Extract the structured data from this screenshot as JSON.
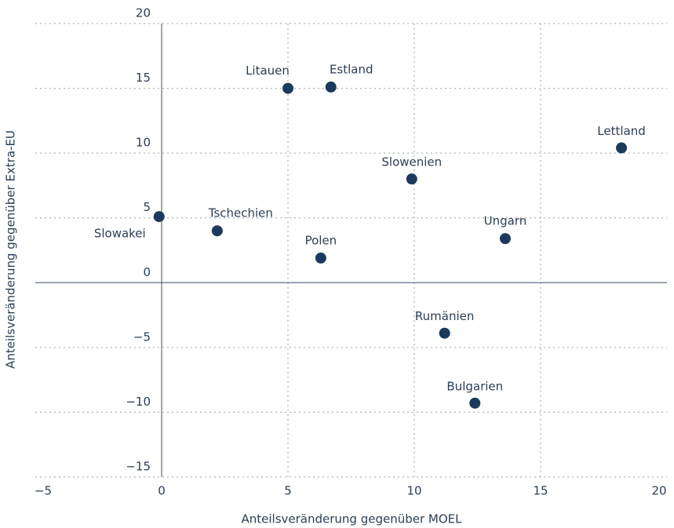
{
  "chart_data": {
    "type": "scatter",
    "x_label": "Anteilsveränderung gegenüber MOEL",
    "y_label": "Anteilsveränderung gegenüber Extra-EU",
    "color": "#1b3a5c",
    "xlim": [
      -5,
      20
    ],
    "xticks": [
      {
        "value": -5,
        "label": "−5"
      },
      0,
      5,
      10,
      15,
      20
    ],
    "ylim": [
      -15,
      20
    ],
    "yticks": [
      {
        "value": -15,
        "label": "−15"
      },
      {
        "value": -10,
        "label": "−10"
      },
      {
        "value": -5,
        "label": "−5"
      },
      0,
      5,
      10,
      15,
      20
    ],
    "grid": true,
    "labels": [
      "Slowakei",
      "Tschechien",
      "Litauen",
      "Estland",
      "Slowenien",
      "Polen",
      "Ungarn",
      "Lettland",
      "Rumänien",
      "Bulgarien"
    ],
    "x": [
      -0.1,
      2.2,
      5.0,
      6.7,
      9.9,
      6.3,
      13.6,
      18.2,
      11.2,
      12.4
    ],
    "y": [
      5.1,
      4.0,
      15.0,
      15.1,
      8.0,
      1.9,
      3.4,
      10.4,
      -3.9,
      -9.3
    ]
  }
}
